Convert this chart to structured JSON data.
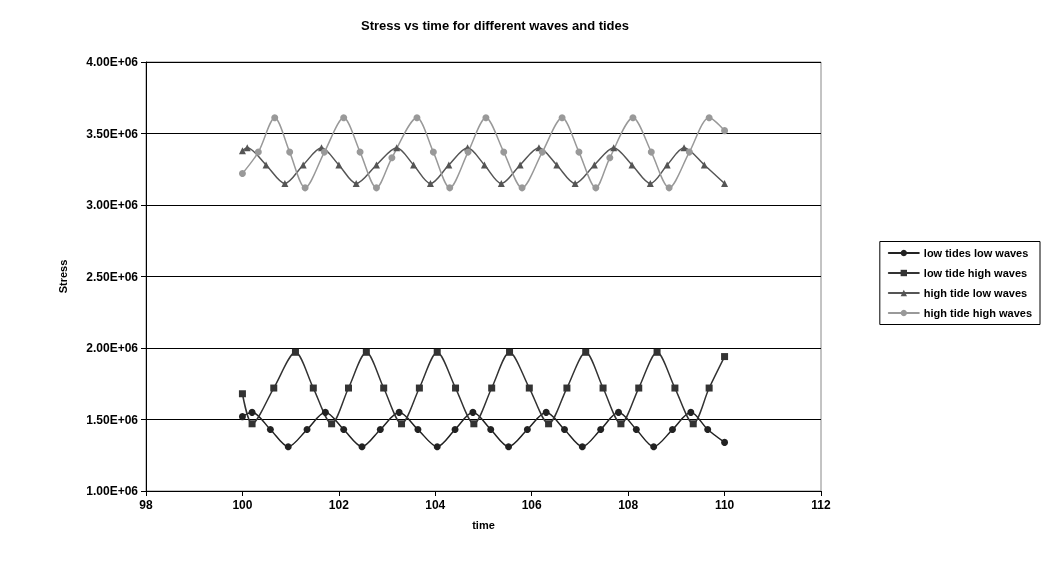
{
  "chart_data": {
    "type": "line",
    "title": "Stress vs time for different waves and tides",
    "xlabel": "time",
    "ylabel": "Stress",
    "xlim": [
      98,
      112
    ],
    "xticks": [
      98,
      100,
      102,
      104,
      106,
      108,
      110,
      112
    ],
    "ylim": [
      1000000,
      4000000
    ],
    "yticks": [
      {
        "value": 1000000,
        "label": "1.00E+06"
      },
      {
        "value": 1500000,
        "label": "1.50E+06"
      },
      {
        "value": 2000000,
        "label": "2.00E+06"
      },
      {
        "value": 2500000,
        "label": "2.50E+06"
      },
      {
        "value": 3000000,
        "label": "3.00E+06"
      },
      {
        "value": 3500000,
        "label": "3.50E+06"
      },
      {
        "value": 4000000,
        "label": "4.00E+06"
      }
    ],
    "grid": "y",
    "legend": "right",
    "line_style": "solid",
    "series": [
      {
        "name": "low tides low waves",
        "color": "#222222",
        "marker": "circle",
        "x": [
          100,
          100.2,
          100.58,
          100.95,
          101.34,
          101.72,
          102.1,
          102.48,
          102.86,
          103.25,
          103.64,
          104.04,
          104.41,
          104.78,
          105.15,
          105.52,
          105.91,
          106.3,
          106.68,
          107.05,
          107.43,
          107.8,
          108.17,
          108.53,
          108.92,
          109.3,
          109.65,
          110
        ],
        "values": [
          1520000,
          1550000,
          1430000,
          1310000,
          1430000,
          1550000,
          1430000,
          1310000,
          1430000,
          1550000,
          1430000,
          1310000,
          1430000,
          1550000,
          1430000,
          1310000,
          1430000,
          1550000,
          1430000,
          1310000,
          1430000,
          1550000,
          1430000,
          1310000,
          1430000,
          1550000,
          1430000,
          1340000
        ]
      },
      {
        "name": "low tide high waves",
        "color": "#333333",
        "marker": "square",
        "x": [
          100,
          100.2,
          100.65,
          101.1,
          101.47,
          101.85,
          102.2,
          102.57,
          102.93,
          103.3,
          103.67,
          104.04,
          104.42,
          104.8,
          105.17,
          105.54,
          105.95,
          106.35,
          106.73,
          107.12,
          107.48,
          107.85,
          108.22,
          108.6,
          108.97,
          109.35,
          109.68,
          110
        ],
        "values": [
          1680000,
          1470000,
          1720000,
          1970000,
          1720000,
          1470000,
          1720000,
          1970000,
          1720000,
          1470000,
          1720000,
          1970000,
          1720000,
          1470000,
          1720000,
          1970000,
          1720000,
          1470000,
          1720000,
          1970000,
          1720000,
          1470000,
          1720000,
          1970000,
          1720000,
          1470000,
          1720000,
          1940000
        ]
      },
      {
        "name": "high tide low waves",
        "color": "#555555",
        "marker": "triangle",
        "x": [
          100,
          100.1,
          100.49,
          100.88,
          101.26,
          101.64,
          102.0,
          102.36,
          102.78,
          103.2,
          103.55,
          103.9,
          104.28,
          104.67,
          105.02,
          105.37,
          105.76,
          106.15,
          106.52,
          106.9,
          107.3,
          107.7,
          108.08,
          108.46,
          108.81,
          109.16,
          109.58,
          110
        ],
        "values": [
          3380000,
          3400000,
          3280000,
          3150000,
          3280000,
          3400000,
          3280000,
          3150000,
          3280000,
          3400000,
          3280000,
          3150000,
          3280000,
          3400000,
          3280000,
          3150000,
          3280000,
          3400000,
          3280000,
          3150000,
          3280000,
          3400000,
          3280000,
          3150000,
          3280000,
          3400000,
          3280000,
          3150000
        ]
      },
      {
        "name": "high tide high waves",
        "color": "#999999",
        "marker": "circle",
        "x": [
          100,
          100.33,
          100.67,
          100.98,
          101.3,
          101.7,
          102.1,
          102.44,
          102.78,
          103.1,
          103.62,
          103.96,
          104.3,
          104.68,
          105.05,
          105.42,
          105.8,
          106.22,
          106.63,
          106.98,
          107.33,
          107.62,
          108.1,
          108.48,
          108.85,
          109.27,
          109.68,
          110
        ],
        "values": [
          3220000,
          3370000,
          3610000,
          3370000,
          3120000,
          3370000,
          3610000,
          3370000,
          3120000,
          3330000,
          3610000,
          3370000,
          3120000,
          3370000,
          3610000,
          3370000,
          3120000,
          3370000,
          3610000,
          3370000,
          3120000,
          3330000,
          3610000,
          3370000,
          3120000,
          3370000,
          3610000,
          3520000
        ]
      }
    ]
  }
}
